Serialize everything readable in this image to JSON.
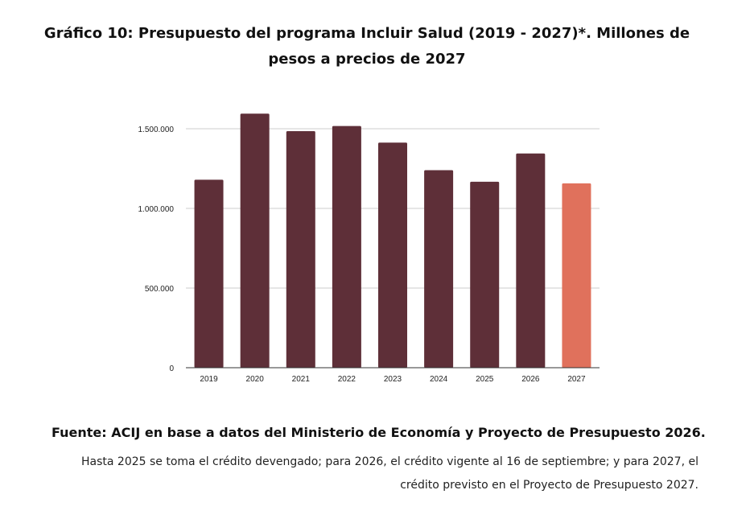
{
  "title": "Gráfico 10: Presupuesto del programa Incluir Salud (2019 - 2027)*. Millones de pesos a precios de 2027",
  "source": "Fuente: ACIJ en base a datos del Ministerio de Economía y Proyecto de Presupuesto 2026.",
  "note": "Hasta 2025 se toma el crédito devengado; para 2026, el crédito vigente al 16 de septiembre; y para 2027, el crédito previsto en el Proyecto de Presupuesto 2027.",
  "chart_data": {
    "type": "bar",
    "categories": [
      "2019",
      "2020",
      "2021",
      "2022",
      "2023",
      "2024",
      "2025",
      "2026",
      "2027"
    ],
    "values": [
      1180000,
      1595000,
      1485000,
      1517000,
      1413000,
      1240000,
      1167000,
      1345000,
      1157000
    ],
    "colors": [
      "#5e2f38",
      "#5e2f38",
      "#5e2f38",
      "#5e2f38",
      "#5e2f38",
      "#5e2f38",
      "#5e2f38",
      "#5e2f38",
      "#e0715c"
    ],
    "yticks": [
      0,
      500000,
      1000000,
      1500000
    ],
    "ytick_labels": [
      "0",
      "500.000",
      "1.000.000",
      "1.500.000"
    ],
    "ylim": [
      0,
      1500000
    ],
    "grid": true,
    "gridline_color": "#cccccc",
    "xlabel": "",
    "ylabel": ""
  }
}
